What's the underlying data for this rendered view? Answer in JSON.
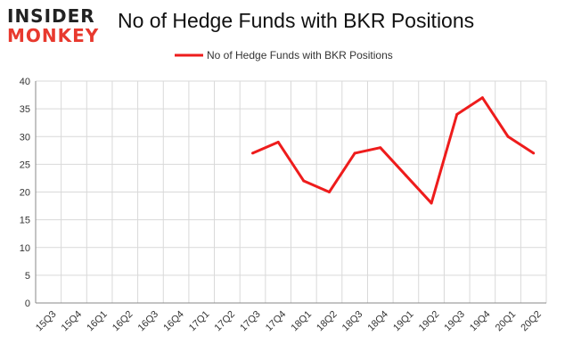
{
  "logo": {
    "line1": "INSIDER",
    "line2": "MONKEY"
  },
  "chart_data": {
    "type": "line",
    "title": "No of Hedge Funds with BKR Positions",
    "xlabel": "",
    "ylabel": "",
    "categories": [
      "15Q3",
      "15Q4",
      "16Q1",
      "16Q2",
      "16Q3",
      "16Q4",
      "17Q1",
      "17Q2",
      "17Q3",
      "17Q4",
      "18Q1",
      "18Q2",
      "18Q3",
      "18Q4",
      "19Q1",
      "19Q2",
      "19Q3",
      "19Q4",
      "20Q1",
      "20Q2"
    ],
    "series": [
      {
        "name": "No of Hedge Funds with BKR Positions",
        "color": "#ee1c1c",
        "values": [
          null,
          null,
          null,
          null,
          null,
          null,
          null,
          null,
          27,
          29,
          22,
          20,
          27,
          28,
          23,
          18,
          34,
          37,
          30,
          27
        ]
      }
    ],
    "ylim": [
      0,
      40
    ],
    "yticks": [
      0,
      5,
      10,
      15,
      20,
      25,
      30,
      35,
      40
    ],
    "grid": true,
    "legend": "top-center"
  }
}
